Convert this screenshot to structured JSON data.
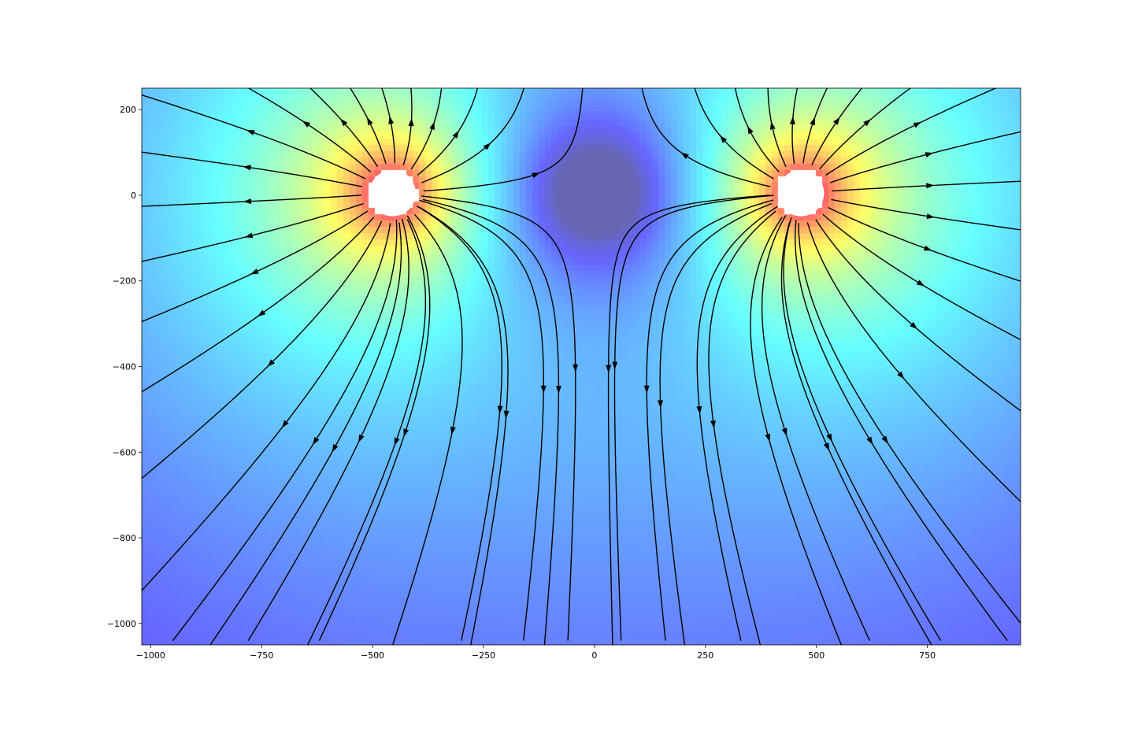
{
  "chart_data": {
    "type": "streamplot",
    "title": "",
    "xlabel": "",
    "ylabel": "",
    "xlim": [
      -1020,
      960
    ],
    "ylim": [
      -1050,
      250
    ],
    "xticks": [
      -1000,
      -750,
      -500,
      -250,
      0,
      250,
      500,
      750
    ],
    "yticks": [
      200,
      0,
      -200,
      -400,
      -600,
      -800,
      -1000
    ],
    "xtick_labels": [
      "−1000",
      "−750",
      "−500",
      "−250",
      "0",
      "250",
      "500",
      "750"
    ],
    "ytick_labels": [
      "200",
      "0",
      "−200",
      "−400",
      "−600",
      "−800",
      "−1000"
    ],
    "grid": false,
    "colormap": "jet",
    "background_alpha": 0.6,
    "sources": [
      {
        "x": -455,
        "y": 5,
        "radius": 55
      },
      {
        "x": 465,
        "y": 5,
        "radius": 55
      }
    ],
    "saddle": {
      "x": 0,
      "y": 0
    },
    "streamline_color": "#000000"
  }
}
